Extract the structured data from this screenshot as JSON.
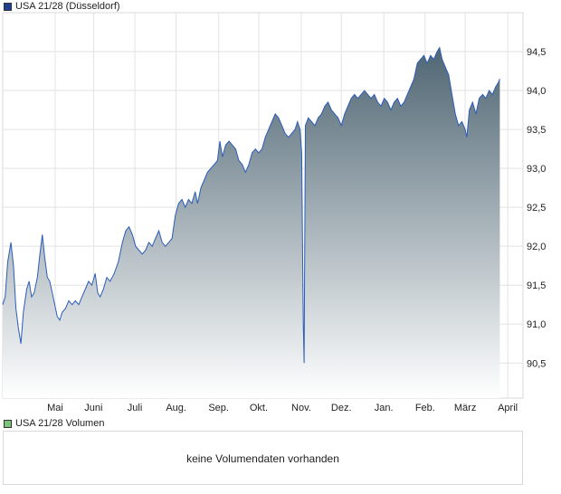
{
  "legend": {
    "price_label": "USA 21/28 (Düsseldorf)",
    "price_color": "#1f3f8f",
    "volume_label": "USA 21/28 Volumen",
    "volume_color": "#7cc47c"
  },
  "volume_panel": {
    "message": "keine Volumendaten vorhanden"
  },
  "chart_data": {
    "type": "area",
    "title": "",
    "xlabel": "",
    "ylabel": "",
    "ylim": [
      90.05,
      95.0
    ],
    "y_ticks": [
      "94,5",
      "94,0",
      "93,5",
      "93,0",
      "92,5",
      "92,0",
      "91,5",
      "91,0",
      "90,5"
    ],
    "y_tick_values": [
      94.5,
      94.0,
      93.5,
      93.0,
      92.5,
      92.0,
      91.5,
      91.0,
      90.5
    ],
    "x_ticks": [
      "Mai",
      "Juni",
      "Juli",
      "Aug.",
      "Sep.",
      "Okt.",
      "Nov.",
      "Dez.",
      "Jan.",
      "Feb.",
      "März",
      "April"
    ],
    "x_tick_positions": [
      1.27,
      2.2,
      3.2,
      4.2,
      5.23,
      6.2,
      7.23,
      8.2,
      9.23,
      10.23,
      11.2,
      12.23
    ],
    "xlim": [
      0.0,
      12.6
    ],
    "grid": true,
    "line_color": "#2b5cb8",
    "area_top_color": "#4f6673",
    "area_bottom_color": "#ffffff",
    "series": [
      {
        "values": [
          [
            0.0,
            91.25
          ],
          [
            0.06,
            91.35
          ],
          [
            0.12,
            91.8
          ],
          [
            0.2,
            92.05
          ],
          [
            0.26,
            91.75
          ],
          [
            0.32,
            91.2
          ],
          [
            0.38,
            90.95
          ],
          [
            0.44,
            90.75
          ],
          [
            0.5,
            91.15
          ],
          [
            0.58,
            91.45
          ],
          [
            0.64,
            91.55
          ],
          [
            0.7,
            91.35
          ],
          [
            0.76,
            91.4
          ],
          [
            0.84,
            91.6
          ],
          [
            0.9,
            91.9
          ],
          [
            0.96,
            92.15
          ],
          [
            1.02,
            91.85
          ],
          [
            1.08,
            91.6
          ],
          [
            1.14,
            91.55
          ],
          [
            1.2,
            91.4
          ],
          [
            1.26,
            91.25
          ],
          [
            1.32,
            91.1
          ],
          [
            1.38,
            91.05
          ],
          [
            1.44,
            91.15
          ],
          [
            1.52,
            91.2
          ],
          [
            1.6,
            91.3
          ],
          [
            1.68,
            91.25
          ],
          [
            1.76,
            91.3
          ],
          [
            1.84,
            91.25
          ],
          [
            1.92,
            91.35
          ],
          [
            2.0,
            91.45
          ],
          [
            2.08,
            91.55
          ],
          [
            2.16,
            91.5
          ],
          [
            2.24,
            91.65
          ],
          [
            2.3,
            91.4
          ],
          [
            2.36,
            91.35
          ],
          [
            2.44,
            91.45
          ],
          [
            2.52,
            91.6
          ],
          [
            2.6,
            91.55
          ],
          [
            2.7,
            91.65
          ],
          [
            2.8,
            91.8
          ],
          [
            2.9,
            92.05
          ],
          [
            2.98,
            92.2
          ],
          [
            3.06,
            92.25
          ],
          [
            3.14,
            92.15
          ],
          [
            3.22,
            92.0
          ],
          [
            3.3,
            91.95
          ],
          [
            3.38,
            91.9
          ],
          [
            3.46,
            91.95
          ],
          [
            3.54,
            92.05
          ],
          [
            3.62,
            92.0
          ],
          [
            3.7,
            92.1
          ],
          [
            3.78,
            92.2
          ],
          [
            3.86,
            92.05
          ],
          [
            3.94,
            92.0
          ],
          [
            4.02,
            92.05
          ],
          [
            4.1,
            92.1
          ],
          [
            4.18,
            92.4
          ],
          [
            4.26,
            92.55
          ],
          [
            4.34,
            92.6
          ],
          [
            4.42,
            92.5
          ],
          [
            4.5,
            92.6
          ],
          [
            4.58,
            92.55
          ],
          [
            4.66,
            92.7
          ],
          [
            4.72,
            92.55
          ],
          [
            4.8,
            92.75
          ],
          [
            4.88,
            92.85
          ],
          [
            4.96,
            92.95
          ],
          [
            5.04,
            93.0
          ],
          [
            5.12,
            93.05
          ],
          [
            5.2,
            93.1
          ],
          [
            5.26,
            93.35
          ],
          [
            5.32,
            93.15
          ],
          [
            5.4,
            93.3
          ],
          [
            5.48,
            93.35
          ],
          [
            5.56,
            93.3
          ],
          [
            5.64,
            93.25
          ],
          [
            5.72,
            93.1
          ],
          [
            5.8,
            93.05
          ],
          [
            5.88,
            92.95
          ],
          [
            5.96,
            93.05
          ],
          [
            6.04,
            93.2
          ],
          [
            6.12,
            93.25
          ],
          [
            6.2,
            93.2
          ],
          [
            6.28,
            93.25
          ],
          [
            6.36,
            93.4
          ],
          [
            6.44,
            93.5
          ],
          [
            6.52,
            93.6
          ],
          [
            6.6,
            93.7
          ],
          [
            6.68,
            93.65
          ],
          [
            6.76,
            93.55
          ],
          [
            6.84,
            93.45
          ],
          [
            6.92,
            93.4
          ],
          [
            7.0,
            93.45
          ],
          [
            7.08,
            93.5
          ],
          [
            7.14,
            93.6
          ],
          [
            7.2,
            93.5
          ],
          [
            7.24,
            93.2
          ],
          [
            7.28,
            91.0
          ],
          [
            7.3,
            90.5
          ],
          [
            7.33,
            93.55
          ],
          [
            7.4,
            93.65
          ],
          [
            7.48,
            93.6
          ],
          [
            7.56,
            93.55
          ],
          [
            7.64,
            93.65
          ],
          [
            7.72,
            93.7
          ],
          [
            7.8,
            93.8
          ],
          [
            7.88,
            93.85
          ],
          [
            7.96,
            93.75
          ],
          [
            8.04,
            93.7
          ],
          [
            8.12,
            93.65
          ],
          [
            8.2,
            93.55
          ],
          [
            8.28,
            93.7
          ],
          [
            8.36,
            93.8
          ],
          [
            8.44,
            93.9
          ],
          [
            8.52,
            93.95
          ],
          [
            8.6,
            93.9
          ],
          [
            8.68,
            93.95
          ],
          [
            8.76,
            94.0
          ],
          [
            8.84,
            93.95
          ],
          [
            8.92,
            93.9
          ],
          [
            9.0,
            93.95
          ],
          [
            9.08,
            93.85
          ],
          [
            9.16,
            93.8
          ],
          [
            9.24,
            93.9
          ],
          [
            9.32,
            93.85
          ],
          [
            9.4,
            93.75
          ],
          [
            9.48,
            93.85
          ],
          [
            9.56,
            93.9
          ],
          [
            9.64,
            93.8
          ],
          [
            9.72,
            93.85
          ],
          [
            9.8,
            93.95
          ],
          [
            9.88,
            94.05
          ],
          [
            9.96,
            94.15
          ],
          [
            10.04,
            94.35
          ],
          [
            10.12,
            94.4
          ],
          [
            10.2,
            94.45
          ],
          [
            10.28,
            94.35
          ],
          [
            10.36,
            94.45
          ],
          [
            10.44,
            94.4
          ],
          [
            10.52,
            94.5
          ],
          [
            10.58,
            94.55
          ],
          [
            10.64,
            94.4
          ],
          [
            10.72,
            94.3
          ],
          [
            10.8,
            94.2
          ],
          [
            10.88,
            93.95
          ],
          [
            10.96,
            93.7
          ],
          [
            11.04,
            93.55
          ],
          [
            11.12,
            93.6
          ],
          [
            11.2,
            93.5
          ],
          [
            11.24,
            93.4
          ],
          [
            11.3,
            93.75
          ],
          [
            11.38,
            93.85
          ],
          [
            11.46,
            93.7
          ],
          [
            11.54,
            93.9
          ],
          [
            11.62,
            93.95
          ],
          [
            11.7,
            93.9
          ],
          [
            11.78,
            94.0
          ],
          [
            11.86,
            93.95
          ],
          [
            11.94,
            94.05
          ],
          [
            12.0,
            94.1
          ],
          [
            12.04,
            94.15
          ]
        ]
      }
    ]
  }
}
